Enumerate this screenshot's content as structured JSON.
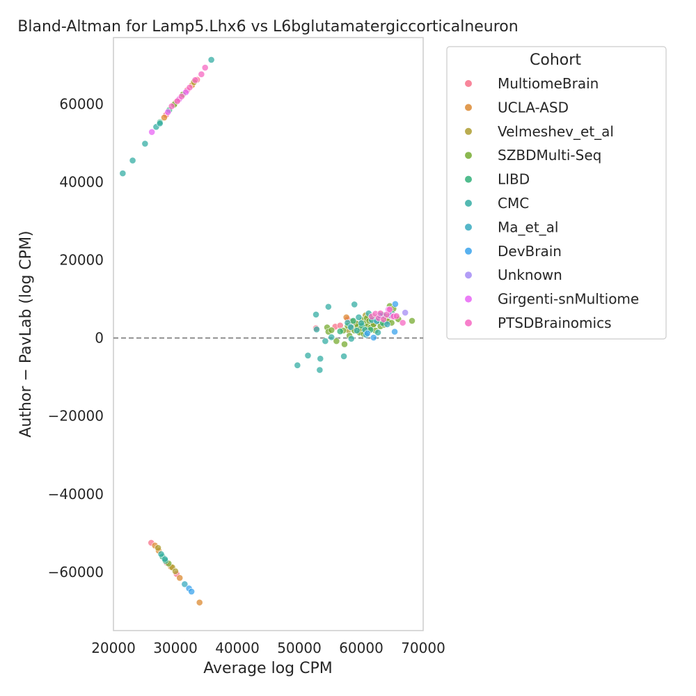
{
  "chart_data": {
    "type": "scatter",
    "title": "Bland-Altman for Lamp5.Lhx6 vs L6bglutamatergiccorticalneuron",
    "xlabel": "Average log CPM",
    "ylabel": "Author − PavLab (log CPM)",
    "xlim": [
      20000,
      70000
    ],
    "ylim": [
      -75000,
      77000
    ],
    "xticks": [
      20000,
      30000,
      40000,
      50000,
      60000,
      70000
    ],
    "yticks": [
      -60000,
      -40000,
      -20000,
      0,
      20000,
      40000,
      60000
    ],
    "xtick_labels": [
      "20000",
      "30000",
      "40000",
      "50000",
      "60000",
      "70000"
    ],
    "ytick_labels": [
      "−60000",
      "−40000",
      "−20000",
      "0",
      "20000",
      "40000",
      "60000"
    ],
    "reference_line": 0,
    "grid": false,
    "legend": {
      "title": "Cohort",
      "placement": "outside-right"
    },
    "series": [
      {
        "name": "MultiomeBrain",
        "color": "#f77189",
        "points": [
          [
            52700,
            2500
          ],
          [
            55800,
            2900
          ],
          [
            56600,
            3200
          ],
          [
            57800,
            4800
          ],
          [
            59200,
            3800
          ],
          [
            61200,
            5100
          ],
          [
            62100,
            4500
          ],
          [
            63400,
            5600
          ],
          [
            64300,
            4900
          ],
          [
            26100,
            -52500
          ],
          [
            28600,
            -57600
          ],
          [
            30200,
            -60500
          ],
          [
            28500,
            57200
          ],
          [
            31900,
            63500
          ],
          [
            33500,
            66200
          ]
        ]
      },
      {
        "name": "UCLA-ASD",
        "color": "#dc8932",
        "points": [
          [
            57600,
            5300
          ],
          [
            58400,
            2500
          ],
          [
            59700,
            3400
          ],
          [
            61800,
            4000
          ],
          [
            62900,
            5500
          ],
          [
            64100,
            4400
          ],
          [
            26700,
            -53200
          ],
          [
            27300,
            -54500
          ],
          [
            29300,
            -58700
          ],
          [
            30700,
            -61500
          ],
          [
            33900,
            -67800
          ],
          [
            28200,
            56500
          ],
          [
            30400,
            60900
          ],
          [
            32700,
            64800
          ]
        ]
      },
      {
        "name": "Velmeshev_et_al",
        "color": "#ae9d31",
        "points": [
          [
            57900,
            2000
          ],
          [
            58600,
            4200
          ],
          [
            59900,
            1600
          ],
          [
            60700,
            5800
          ],
          [
            61900,
            3300
          ],
          [
            63000,
            6100
          ],
          [
            63800,
            4700
          ],
          [
            27200,
            -53800
          ],
          [
            29500,
            -58800
          ],
          [
            30000,
            -59800
          ],
          [
            29900,
            60100
          ],
          [
            33000,
            65600
          ]
        ]
      },
      {
        "name": "SZBDMulti-Seq",
        "color": "#77ab31",
        "points": [
          [
            54500,
            2700
          ],
          [
            54700,
            1600
          ],
          [
            55200,
            2000
          ],
          [
            56000,
            -800
          ],
          [
            57100,
            1900
          ],
          [
            57300,
            -1600
          ],
          [
            57800,
            3100
          ],
          [
            58100,
            600
          ],
          [
            58400,
            2600
          ],
          [
            58900,
            1900
          ],
          [
            59200,
            3700
          ],
          [
            59400,
            2900
          ],
          [
            59700,
            1400
          ],
          [
            59900,
            2500
          ],
          [
            60200,
            4600
          ],
          [
            60400,
            1000
          ],
          [
            60600,
            3800
          ],
          [
            60700,
            2100
          ],
          [
            60900,
            5100
          ],
          [
            61000,
            3000
          ],
          [
            61300,
            4400
          ],
          [
            61500,
            2600
          ],
          [
            61800,
            5700
          ],
          [
            62000,
            3500
          ],
          [
            62300,
            1900
          ],
          [
            62500,
            5200
          ],
          [
            62800,
            4100
          ],
          [
            63100,
            3000
          ],
          [
            63400,
            6000
          ],
          [
            63700,
            3400
          ],
          [
            64000,
            5500
          ],
          [
            64300,
            4200
          ],
          [
            64600,
            8200
          ],
          [
            64900,
            3900
          ],
          [
            65200,
            7500
          ],
          [
            65600,
            5300
          ],
          [
            66000,
            4800
          ],
          [
            68200,
            4400
          ],
          [
            28900,
            -57800
          ],
          [
            29800,
            59800
          ],
          [
            31200,
            62400
          ]
        ]
      },
      {
        "name": "LIBD",
        "color": "#33b07a",
        "points": [
          [
            56600,
            1700
          ],
          [
            58700,
            4400
          ],
          [
            60100,
            3200
          ],
          [
            61500,
            2100
          ],
          [
            62200,
            4700
          ],
          [
            63500,
            3800
          ],
          [
            65000,
            6200
          ],
          [
            27900,
            -56000
          ],
          [
            28400,
            -57100
          ],
          [
            27500,
            55300
          ],
          [
            29000,
            58400
          ]
        ]
      },
      {
        "name": "CMC",
        "color": "#36ada4",
        "points": [
          [
            49700,
            -7000
          ],
          [
            51400,
            -4500
          ],
          [
            52700,
            6000
          ],
          [
            52800,
            2200
          ],
          [
            53300,
            -8200
          ],
          [
            53400,
            -5300
          ],
          [
            54200,
            -800
          ],
          [
            54700,
            8000
          ],
          [
            55200,
            200
          ],
          [
            57200,
            -4700
          ],
          [
            57800,
            3900
          ],
          [
            58400,
            -200
          ],
          [
            58900,
            8600
          ],
          [
            59300,
            1900
          ],
          [
            59600,
            5300
          ],
          [
            60000,
            3800
          ],
          [
            60600,
            2100
          ],
          [
            61200,
            6300
          ],
          [
            61700,
            4600
          ],
          [
            62700,
            1400
          ],
          [
            63500,
            5900
          ],
          [
            21500,
            42200
          ],
          [
            23100,
            45500
          ],
          [
            25100,
            49800
          ],
          [
            26900,
            54100
          ],
          [
            27500,
            55000
          ],
          [
            35800,
            71300
          ],
          [
            27700,
            -55400
          ],
          [
            28300,
            -56700
          ]
        ]
      },
      {
        "name": "Ma_et_al",
        "color": "#38aabf",
        "points": [
          [
            58300,
            2800
          ],
          [
            60800,
            800
          ],
          [
            62500,
            4300
          ],
          [
            64200,
            3500
          ],
          [
            31500,
            -63100
          ]
        ]
      },
      {
        "name": "DevBrain",
        "color": "#3ba3ec",
        "points": [
          [
            61000,
            1200
          ],
          [
            62000,
            100
          ],
          [
            63000,
            5800
          ],
          [
            65400,
            1600
          ],
          [
            65500,
            8700
          ],
          [
            32200,
            -64200
          ],
          [
            32600,
            -65000
          ]
        ]
      },
      {
        "name": "Unknown",
        "color": "#a48cf4",
        "points": [
          [
            67100,
            6500
          ],
          [
            64700,
            5800
          ]
        ]
      },
      {
        "name": "Girgenti-snMultiome",
        "color": "#e866f4",
        "points": [
          [
            64400,
            7300
          ],
          [
            65300,
            5700
          ],
          [
            26200,
            52800
          ],
          [
            28800,
            57900
          ],
          [
            30600,
            61200
          ],
          [
            31700,
            63000
          ]
        ]
      },
      {
        "name": "PTSDBrainomics",
        "color": "#f668c2",
        "points": [
          [
            61700,
            5500
          ],
          [
            62300,
            6200
          ],
          [
            62800,
            5100
          ],
          [
            63100,
            6300
          ],
          [
            63600,
            4800
          ],
          [
            64100,
            6000
          ],
          [
            64600,
            7300
          ],
          [
            65200,
            5500
          ],
          [
            65700,
            5600
          ],
          [
            66700,
            3900
          ],
          [
            34200,
            67600
          ],
          [
            34800,
            69300
          ],
          [
            33200,
            66100
          ],
          [
            32300,
            64200
          ],
          [
            31000,
            61900
          ],
          [
            30300,
            60700
          ],
          [
            29400,
            59400
          ]
        ]
      }
    ]
  }
}
